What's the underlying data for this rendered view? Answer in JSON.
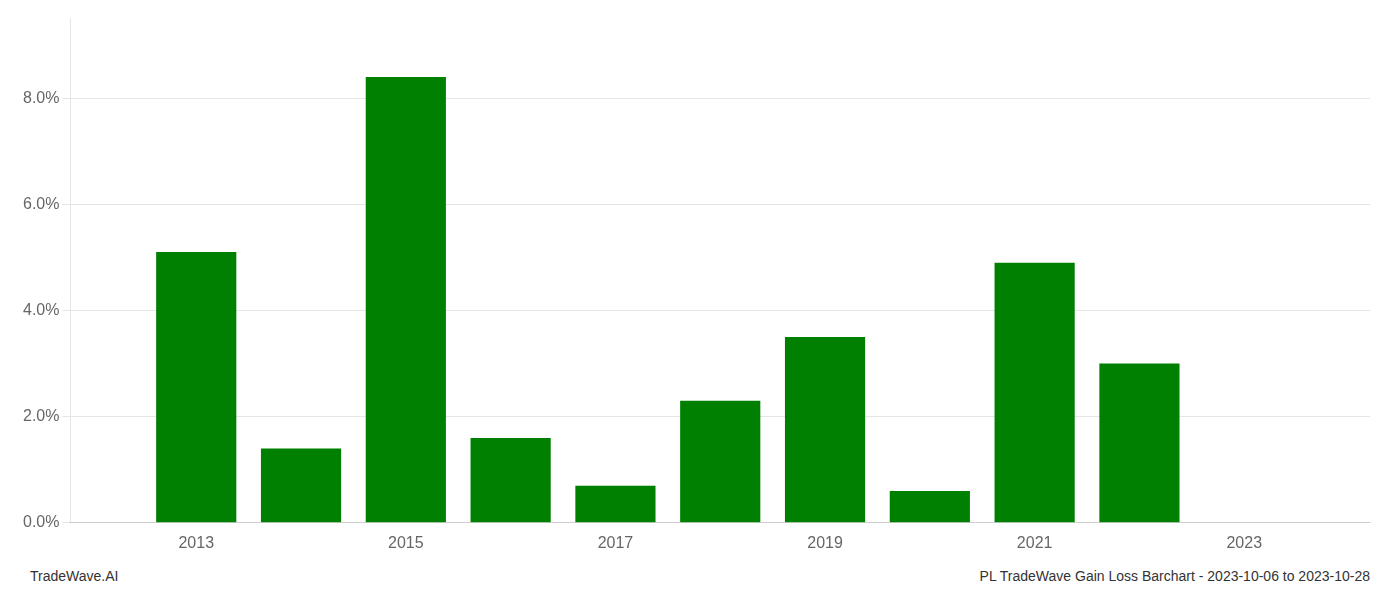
{
  "chart_data": {
    "type": "bar",
    "x": [
      2013,
      2014,
      2015,
      2016,
      2017,
      2018,
      2019,
      2020,
      2021,
      2022,
      2023
    ],
    "values": [
      0.051,
      0.014,
      0.084,
      0.016,
      0.007,
      0.023,
      0.035,
      0.006,
      0.049,
      0.03,
      0.0
    ],
    "color": "#008000",
    "xlim": [
      2011.8,
      2024.2
    ],
    "xticks": [
      2013,
      2015,
      2017,
      2019,
      2021,
      2023
    ],
    "ylim": [
      0,
      0.095
    ],
    "yticks": [
      {
        "value": 0.0,
        "label": "0.0%"
      },
      {
        "value": 0.02,
        "label": "2.0%"
      },
      {
        "value": 0.04,
        "label": "4.0%"
      },
      {
        "value": 0.06,
        "label": "6.0%"
      },
      {
        "value": 0.08,
        "label": "8.0%"
      }
    ],
    "grid": true,
    "annotations": [
      "TradeWave.AI",
      "PL TradeWave Gain Loss Barchart - 2023-10-06 to 2023-10-28"
    ]
  }
}
